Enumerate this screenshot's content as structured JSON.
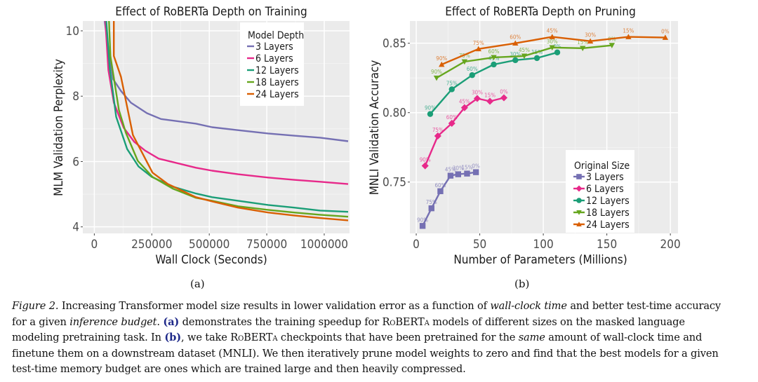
{
  "chart_data": [
    {
      "type": "line",
      "title": "Effect of RoBERTa Depth on Training",
      "xlabel": "Wall Clock (Seconds)",
      "ylabel": "MLM Validation Perplexity",
      "xlim": [
        -50000,
        1110000
      ],
      "ylim": [
        3.8,
        10.3
      ],
      "xticks": [
        0,
        250000,
        500000,
        750000,
        1000000
      ],
      "xtick_labels": [
        "0",
        "250000",
        "500000",
        "750000",
        "1000000"
      ],
      "yticks": [
        4,
        6,
        8,
        10
      ],
      "ytick_labels": [
        "4",
        "6",
        "8",
        "10"
      ],
      "grid": true,
      "legend": {
        "title": "Model Depth",
        "placement": "top-right"
      },
      "series": [
        {
          "name": "3 Layers",
          "color": "#7570b3",
          "x": [
            45000,
            62000,
            82000,
            116000,
            159000,
            229000,
            290000,
            442000,
            512000,
            625000,
            756000,
            869000,
            982000,
            1104000
          ],
          "y": [
            10.3,
            9.4,
            8.52,
            8.16,
            7.8,
            7.48,
            7.3,
            7.16,
            7.05,
            6.96,
            6.86,
            6.79,
            6.73,
            6.62
          ]
        },
        {
          "name": "6 Layers",
          "color": "#e7298a",
          "x": [
            48000,
            61000,
            85000,
            128000,
            174000,
            220000,
            280000,
            442000,
            512000,
            625000,
            756000,
            869000,
            982000,
            1104000
          ],
          "y": [
            10.3,
            8.8,
            7.8,
            7.03,
            6.6,
            6.34,
            6.09,
            5.81,
            5.72,
            5.61,
            5.51,
            5.44,
            5.38,
            5.31
          ]
        },
        {
          "name": "12 Layers",
          "color": "#1b9e77",
          "x": [
            52000,
            67000,
            95000,
            143000,
            192000,
            250000,
            341000,
            442000,
            512000,
            625000,
            756000,
            869000,
            982000,
            1104000
          ],
          "y": [
            10.3,
            8.87,
            7.37,
            6.38,
            5.85,
            5.53,
            5.23,
            5.02,
            4.91,
            4.8,
            4.67,
            4.59,
            4.5,
            4.46
          ]
        },
        {
          "name": "18 Layers",
          "color": "#66a61e",
          "x": [
            64000,
            70000,
            107000,
            137000,
            189000,
            253000,
            341000,
            442000,
            512000,
            625000,
            756000,
            869000,
            982000,
            1104000
          ],
          "y": [
            10.3,
            9.23,
            7.58,
            6.88,
            6.02,
            5.53,
            5.17,
            4.89,
            4.8,
            4.63,
            4.52,
            4.44,
            4.37,
            4.31
          ]
        },
        {
          "name": "24 Layers",
          "color": "#d95f02",
          "x": [
            85000,
            85000,
            116000,
            168000,
            253000,
            320000,
            442000,
            512000,
            625000,
            756000,
            869000,
            982000,
            1104000
          ],
          "y": [
            10.3,
            9.23,
            8.59,
            6.81,
            5.66,
            5.31,
            4.91,
            4.78,
            4.59,
            4.44,
            4.35,
            4.27,
            4.2
          ]
        }
      ]
    },
    {
      "type": "line",
      "title": "Effect of RoBERTa Depth on Pruning",
      "xlabel": "Number of Parameters (Millions)",
      "ylabel": "MNLI Validation Accuracy",
      "xlim": [
        -5,
        206
      ],
      "ylim": [
        0.713,
        0.866
      ],
      "xticks": [
        0,
        50,
        100,
        150,
        200
      ],
      "xtick_labels": [
        "0",
        "50",
        "100",
        "150",
        "200"
      ],
      "yticks": [
        0.75,
        0.8,
        0.85
      ],
      "ytick_labels": [
        "0.75",
        "0.80",
        "0.85"
      ],
      "grid": true,
      "legend": {
        "title": "Original Size",
        "placement": "bottom-right"
      },
      "point_labels": [
        "90%",
        "75%",
        "60%",
        "45%",
        "30%",
        "15%",
        "0%"
      ],
      "series": [
        {
          "name": "3 Layers",
          "color": "#7570b3",
          "marker": "square",
          "x": [
            5,
            12,
            19,
            27,
            33,
            40,
            47
          ],
          "y": [
            0.7184,
            0.7311,
            0.7434,
            0.7546,
            0.7556,
            0.7561,
            0.7571
          ]
        },
        {
          "name": "6 Layers",
          "color": "#e7298a",
          "marker": "diamond",
          "x": [
            7,
            17,
            28,
            38,
            48,
            58,
            69
          ],
          "y": [
            0.7617,
            0.7832,
            0.7923,
            0.8036,
            0.8102,
            0.8082,
            0.8107
          ]
        },
        {
          "name": "12 Layers",
          "color": "#1b9e77",
          "marker": "circle",
          "x": [
            11,
            28,
            44,
            61,
            78,
            95,
            111
          ],
          "y": [
            0.799,
            0.8168,
            0.827,
            0.8347,
            0.8378,
            0.8393,
            0.8434
          ]
        },
        {
          "name": "18 Layers",
          "color": "#66a61e",
          "marker": "triangle-down",
          "x": [
            16,
            38,
            61,
            85,
            107,
            131,
            154
          ],
          "y": [
            0.825,
            0.8367,
            0.8398,
            0.8408,
            0.8469,
            0.8464,
            0.8485
          ]
        },
        {
          "name": "24 Layers",
          "color": "#d95f02",
          "marker": "triangle-up",
          "x": [
            20,
            49,
            78,
            107,
            137,
            167,
            196
          ],
          "y": [
            0.8347,
            0.8459,
            0.85,
            0.8546,
            0.8515,
            0.8546,
            0.8541
          ]
        }
      ]
    }
  ],
  "sublabels": {
    "a": "(a)",
    "b": "(b)"
  },
  "caption": {
    "figure_label": "Figure 2.",
    "l1_a": " Increasing Transformer model size results in lower validation error as a function of ",
    "l1_it": "wall-clock time",
    "l1_b": " and better test-time accuracy",
    "l2_a": "for a given ",
    "l2_it": "inference budget",
    "l2_b": ". ",
    "l2_ref": "(a)",
    "l2_c": " demonstrates the training speedup for ",
    "l2_sc": "RoBERTa",
    "l2_d": " models of different sizes on the masked language",
    "l3_a": "modeling pretraining task. In ",
    "l3_ref": "(b)",
    "l3_b": ", we take ",
    "l3_sc": "RoBERTa",
    "l3_c": " checkpoints that have been pretrained for the ",
    "l3_it": "same",
    "l3_d": " amount of wall-clock time and",
    "l4": "finetune them on a downstream dataset (MNLI). We then iteratively prune model weights to zero and find that the best models for a given",
    "l5": "test-time memory budget are ones which are trained large and then heavily compressed."
  }
}
